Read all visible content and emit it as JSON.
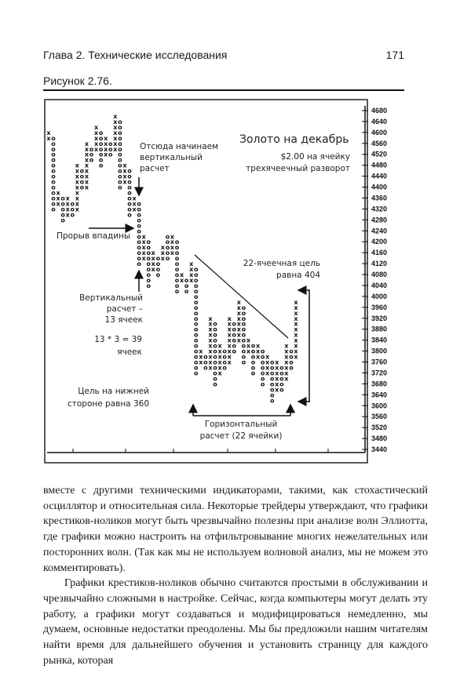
{
  "header": {
    "chapter": "Глава 2. Технические исследования",
    "page_number": "171"
  },
  "figure": {
    "label": "Рисунок 2.76."
  },
  "chart_data": {
    "type": "point-and-figure",
    "title": "Золото на декабрь",
    "subtitle": [
      "$2.00 на ячейку",
      "трехячеечный разворот"
    ],
    "ylim": [
      3440,
      4680
    ],
    "y_ticks": [
      4680,
      4640,
      4600,
      4560,
      4520,
      4480,
      4440,
      4400,
      4360,
      4320,
      4280,
      4240,
      4200,
      4160,
      4120,
      4080,
      4040,
      4000,
      3960,
      3920,
      3880,
      3840,
      3800,
      3760,
      3720,
      3680,
      3640,
      3600,
      3560,
      3520,
      3480,
      3440
    ],
    "box_size": 20,
    "columns": [
      [
        "X",
        4580,
        4600
      ],
      [
        "O",
        4320,
        4580
      ],
      [
        "X",
        4340,
        4380
      ],
      [
        "O",
        4280,
        4360
      ],
      [
        "X",
        4300,
        4360
      ],
      [
        "O",
        4300,
        4340
      ],
      [
        "X",
        4320,
        4480
      ],
      [
        "O",
        4400,
        4460
      ],
      [
        "X",
        4400,
        4560
      ],
      [
        "O",
        4500,
        4540
      ],
      [
        "X",
        4540,
        4620
      ],
      [
        "O",
        4480,
        4600
      ],
      [
        "X",
        4520,
        4580
      ],
      [
        "O",
        4520,
        4560
      ],
      [
        "X",
        4540,
        4660
      ],
      [
        "O",
        4400,
        4640
      ],
      [
        "X",
        4420,
        4480
      ],
      [
        "O",
        4290,
        4460
      ],
      [
        "X",
        4320,
        4360
      ],
      [
        "O",
        4120,
        4340
      ],
      [
        "X",
        4140,
        4220
      ],
      [
        "O",
        4040,
        4200
      ],
      [
        "X",
        4100,
        4160
      ],
      [
        "O",
        4080,
        4140
      ],
      [
        "X",
        4140,
        4180
      ],
      [
        "O",
        4140,
        4220
      ],
      [
        "X",
        4160,
        4220
      ],
      [
        "O",
        4020,
        4200
      ],
      [
        "X",
        4060,
        4080
      ],
      [
        "O",
        4020,
        4060
      ],
      [
        "X",
        4060,
        4120
      ],
      [
        "O",
        3720,
        4100
      ],
      [
        "X",
        3760,
        3800
      ],
      [
        "O",
        3740,
        3780
      ],
      [
        "X",
        3740,
        3920
      ],
      [
        "O",
        3680,
        3900
      ],
      [
        "X",
        3720,
        3820
      ],
      [
        "O",
        3740,
        3800
      ],
      [
        "X",
        3760,
        3920
      ],
      [
        "O",
        3800,
        3900
      ],
      [
        "X",
        3840,
        3980
      ],
      [
        "O",
        3760,
        3960
      ],
      [
        "X",
        3800,
        3840
      ],
      [
        "O",
        3720,
        3820
      ],
      [
        "X",
        3780,
        3820
      ],
      [
        "O",
        3680,
        3800
      ],
      [
        "X",
        3720,
        3780
      ],
      [
        "O",
        3620,
        3760
      ],
      [
        "X",
        3660,
        3760
      ],
      [
        "O",
        3660,
        3740
      ],
      [
        "X",
        3700,
        3820
      ],
      [
        "O",
        3740,
        3800
      ],
      [
        "X",
        3780,
        3980
      ]
    ],
    "annotations": {
      "vertical_start": [
        "Отсюда начинаем",
        "вертикальный",
        "расчет"
      ],
      "breakout": "Прорыв впадины",
      "vertical_count": [
        "Вертикальный",
        "расчет –",
        "13 ячеек"
      ],
      "calc": [
        "13 * 3 = 39",
        "ячеек"
      ],
      "downside_target": [
        "Цель на нижней",
        "стороне равна 360"
      ],
      "target_22": [
        "22-ячеечная цель",
        "равна 404"
      ],
      "horizontal_count": [
        "Горизонтальный",
        "расчет (22 ячейки)"
      ]
    }
  },
  "body": {
    "paragraphs": [
      "вместе с другими техническими индикаторами, такими, как стохастический осциллятор и относительная сила. Некоторые трейдеры утверждают, что графики крестиков-ноликов могут быть чрезвычайно полезны при анализе волн Эллиотта, где графики можно настроить на отфильтровывание многих нежелательных или посторонних волн. (Так как мы не используем волновой анализ, мы не можем это комментировать).",
      "Графики крестиков-ноликов обычно считаются простыми в обслуживании и чрезвычайно сложными в настройке. Сейчас, когда компьютеры могут делать эту работу, а графики могут создаваться и модифицироваться немедленно, мы думаем, основные недостатки преодолены. Мы бы предложили нашим читателям найти время для дальнейшего обучения и установить страницу для каждого рынка, которая"
    ]
  }
}
